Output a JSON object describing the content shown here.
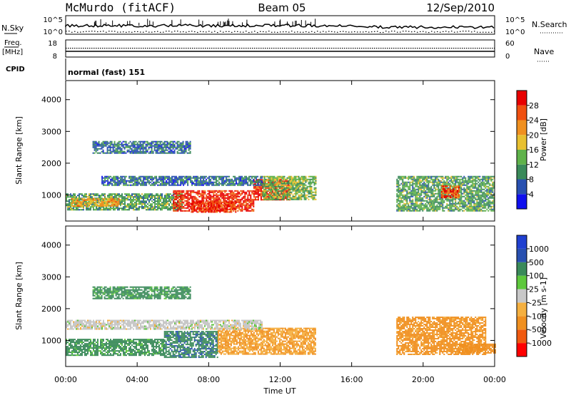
{
  "header": {
    "site": "McMurdo (fitACF)",
    "beam": "Beam 05",
    "date": "12/Sep/2010"
  },
  "top_panels": {
    "nsky_label": "N.Sky",
    "nsearch_label": "N.Search",
    "nsky_ticks": [
      "10^5",
      "10^0"
    ],
    "freq_label_1": "Freq.",
    "freq_label_2": "[MHz]",
    "freq_ticks": [
      "18",
      "8"
    ],
    "nave_label": "Nave",
    "nave_ticks": [
      "60",
      "0"
    ],
    "cpid_label": "CPID",
    "cpid_text": "normal (fast) 151"
  },
  "colors": {
    "power": [
      "#1010ee",
      "#2850b0",
      "#3a8a5a",
      "#5fb24a",
      "#e8c030",
      "#f09020",
      "#f05010",
      "#e80000"
    ],
    "velocity": [
      "#ff0000",
      "#f05a10",
      "#f09020",
      "#f5b040",
      "#c8c8c8",
      "#5ec83c",
      "#3a8a5a",
      "#2850b0",
      "#2040d0"
    ]
  },
  "chart_data": [
    {
      "type": "heatmap",
      "panel": "power",
      "ylabel": "Slant Range [km]",
      "yticks": [
        1000,
        2000,
        3000,
        4000
      ],
      "ylim": [
        180,
        4600
      ],
      "xlim": [
        0,
        24
      ],
      "colorbar_label": "Power [dB]",
      "colorbar_ticks": [
        "4",
        "8",
        "12",
        "16",
        "20",
        "24",
        "28"
      ],
      "colorbar_range": [
        0,
        32
      ],
      "regions": [
        {
          "x": [
            0,
            6.5
          ],
          "y": [
            550,
            1050
          ],
          "value": 12
        },
        {
          "x": [
            0.3,
            3
          ],
          "y": [
            650,
            900
          ],
          "value": 20
        },
        {
          "x": [
            6,
            10.5
          ],
          "y": [
            500,
            1150
          ],
          "value": 28
        },
        {
          "x": [
            7,
            9.5
          ],
          "y": [
            450,
            800
          ],
          "value": 28
        },
        {
          "x": [
            10.5,
            12.5
          ],
          "y": [
            850,
            1500
          ],
          "value": 28
        },
        {
          "x": [
            11,
            14
          ],
          "y": [
            850,
            1600
          ],
          "value": 14
        },
        {
          "x": [
            2,
            11
          ],
          "y": [
            1300,
            1600
          ],
          "value": 8
        },
        {
          "x": [
            18.5,
            24
          ],
          "y": [
            500,
            1600
          ],
          "value": 12
        },
        {
          "x": [
            21,
            22
          ],
          "y": [
            900,
            1300
          ],
          "value": 26
        },
        {
          "x": [
            1.5,
            7
          ],
          "y": [
            2300,
            2700
          ],
          "value": 8
        }
      ]
    },
    {
      "type": "heatmap",
      "panel": "velocity",
      "ylabel": "Slant Range [km]",
      "xlabel": "Time UT",
      "yticks": [
        1000,
        2000,
        3000,
        4000
      ],
      "ylim": [
        180,
        4600
      ],
      "xlim": [
        0,
        24
      ],
      "xticks": [
        "00:00",
        "04:00",
        "08:00",
        "12:00",
        "16:00",
        "20:00",
        "00:00"
      ],
      "colorbar_label": "Velocity [m s-1]",
      "colorbar_ticks": [
        "-1000",
        "-500",
        "-100",
        "-25",
        "25",
        "100",
        "500",
        "1000"
      ],
      "regions": [
        {
          "x": [
            0,
            5.5
          ],
          "y": [
            550,
            1050
          ],
          "value": 150
        },
        {
          "x": [
            5.5,
            8.5
          ],
          "y": [
            450,
            1300
          ],
          "value": 400
        },
        {
          "x": [
            8.5,
            14
          ],
          "y": [
            550,
            1400
          ],
          "value": -100
        },
        {
          "x": [
            0,
            11
          ],
          "y": [
            1350,
            1650
          ],
          "value": 0
        },
        {
          "x": [
            18.5,
            23.5
          ],
          "y": [
            550,
            1750
          ],
          "value": -150
        },
        {
          "x": [
            22,
            24
          ],
          "y": [
            600,
            900
          ],
          "value": -300
        },
        {
          "x": [
            1.5,
            7
          ],
          "y": [
            2300,
            2700
          ],
          "value": 150
        }
      ]
    }
  ]
}
